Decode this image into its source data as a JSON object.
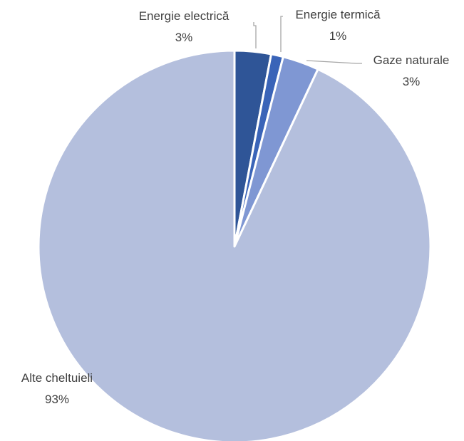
{
  "chart_data": {
    "type": "pie",
    "title": "",
    "slices": [
      {
        "label": "Energie electrică",
        "value": 3,
        "display": "3%",
        "color": "#2f5597"
      },
      {
        "label": "Energie termică",
        "value": 1,
        "display": "1%",
        "color": "#3a64b8"
      },
      {
        "label": "Gaze naturale",
        "value": 3,
        "display": "3%",
        "color": "#7f97d3"
      },
      {
        "label": "Alte cheltuieli",
        "value": 93,
        "display": "93%",
        "color": "#b4bfdd"
      }
    ],
    "start_angle": "12 o'clock",
    "direction": "clockwise",
    "data_labels": "category name and percentage, outside with leader lines",
    "legend": "none"
  }
}
